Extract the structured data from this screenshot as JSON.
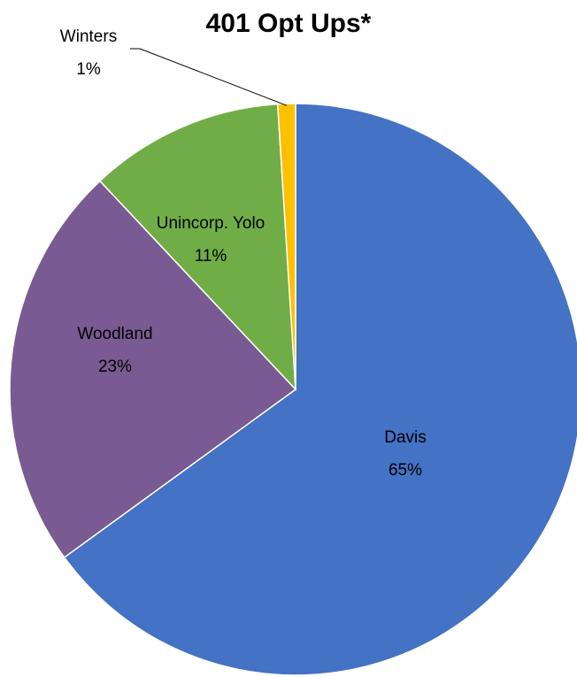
{
  "chart_data": {
    "type": "pie",
    "title": "401 Opt Ups*",
    "slices": [
      {
        "label": "Davis",
        "percent_label": "65%",
        "value": 65,
        "color": "#4472C4"
      },
      {
        "label": "Woodland",
        "percent_label": "23%",
        "value": 23,
        "color": "#7A5A92"
      },
      {
        "label": "Unincorp. Yolo",
        "percent_label": "11%",
        "value": 11,
        "color": "#70AD47"
      },
      {
        "label": "Winters",
        "percent_label": "1%",
        "value": 1,
        "color": "#FFC000"
      }
    ]
  }
}
